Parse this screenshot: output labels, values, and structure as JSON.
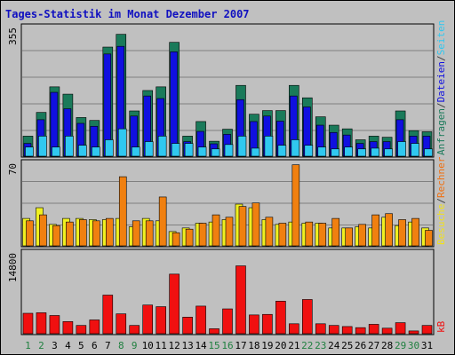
{
  "chart_data": {
    "type": "bar",
    "title": "Tages-Statistik im Monat Dezember 2007",
    "x": [
      "1",
      "2",
      "3",
      "4",
      "5",
      "6",
      "7",
      "8",
      "9",
      "10",
      "11",
      "12",
      "13",
      "14",
      "15",
      "16",
      "17",
      "18",
      "19",
      "20",
      "21",
      "22",
      "23",
      "24",
      "25",
      "26",
      "27",
      "28",
      "29",
      "30",
      "31"
    ],
    "weekend_days": [
      "1",
      "2",
      "8",
      "9",
      "15",
      "16",
      "22",
      "23",
      "29",
      "30"
    ],
    "panels": [
      {
        "id": "top",
        "max_label": "355",
        "ylim": [
          0,
          355
        ],
        "series": [
          {
            "name": "Anfragen",
            "color": "#1a7a5a",
            "values": [
              55,
              120,
              190,
              170,
              106,
              98,
              299,
              334,
              124,
              180,
              190,
              312,
              55,
              95,
              41,
              74,
              194,
              115,
              125,
              125,
              194,
              160,
              108,
              85,
              75,
              45,
              55,
              52,
              124,
              70,
              67
            ]
          },
          {
            "name": "Dateien",
            "color": "#1010e0",
            "values": [
              35,
              100,
              175,
              130,
              90,
              82,
              280,
              301,
              110,
              165,
              158,
              286,
              40,
              68,
              34,
              60,
              155,
              95,
              110,
              96,
              165,
              135,
              85,
              65,
              58,
              35,
              40,
              40,
              100,
              55,
              55
            ]
          },
          {
            "name": "Seiten",
            "color": "#30c8f0",
            "values": [
              25,
              55,
              25,
              55,
              30,
              25,
              45,
              75,
              25,
              40,
              55,
              35,
              35,
              25,
              20,
              32,
              55,
              22,
              55,
              30,
              45,
              30,
              25,
              20,
              25,
              20,
              22,
              20,
              40,
              35,
              20
            ]
          }
        ],
        "legend": [
          "Anfragen",
          "/",
          "Dateien",
          "/",
          "Seiten"
        ],
        "legend_colors": [
          "#1a7a5a",
          "#404040",
          "#1010e0",
          "#404040",
          "#30c8f0"
        ]
      },
      {
        "id": "mid",
        "max_label": "70",
        "ylim": [
          0,
          70
        ],
        "series": [
          {
            "name": "Besuche",
            "color": "#f0f020",
            "values": [
              23,
              32,
              18,
              23,
              23,
              22,
              22,
              23,
              16,
              23,
              21,
              12,
              15,
              19,
              20,
              22,
              35,
              32,
              22,
              18,
              20,
              19,
              19,
              15,
              15,
              16,
              15,
              24,
              17,
              20,
              15
            ]
          },
          {
            "name": "Rechner",
            "color": "#f08010",
            "values": [
              21,
              26,
              17,
              20,
              22,
              21,
              23,
              58,
              21,
              21,
              41,
              11,
              14,
              19,
              26,
              24,
              33,
              36,
              24,
              19,
              68,
              20,
              19,
              23,
              15,
              18,
              26,
              27,
              22,
              23,
              13
            ]
          }
        ],
        "legend": [
          "Besuche",
          "/",
          "Rechner"
        ],
        "legend_colors": [
          "#f0e020",
          "#404040",
          "#f07010"
        ]
      },
      {
        "id": "bot",
        "max_label": "14800",
        "ylim": [
          0,
          14800
        ],
        "series": [
          {
            "name": "kB",
            "color": "#f01010",
            "values": [
              3700,
              3800,
              3300,
              2200,
              1500,
              2500,
              7000,
              3600,
              1500,
              5200,
              4900,
              10800,
              3000,
              5000,
              900,
              4500,
              12300,
              3400,
              3500,
              5900,
              1800,
              6200,
              1800,
              1500,
              1300,
              1100,
              1700,
              1000,
              2000,
              500,
              1500
            ]
          }
        ],
        "legend": [
          "kB"
        ],
        "legend_colors": [
          "#f01010"
        ]
      }
    ],
    "colors": {
      "background": "#c0c0c0",
      "weekday_label": "#10a010",
      "weekend_label": "#208040",
      "gridline": "#808080"
    }
  }
}
